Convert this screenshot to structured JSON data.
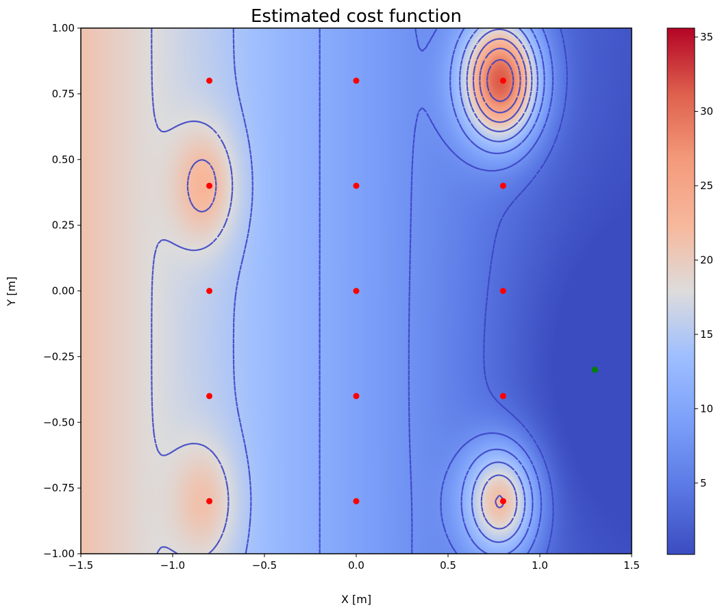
{
  "chart_data": {
    "type": "heatmap",
    "title": "Estimated cost function",
    "xlabel": "X [m]",
    "ylabel": "Y [m]",
    "xlim": [
      -1.5,
      1.5
    ],
    "ylim": [
      -1.0,
      1.0
    ],
    "x_ticks": [
      -1.5,
      -1.0,
      -0.5,
      0.0,
      0.5,
      1.0,
      1.5
    ],
    "x_tick_labels": [
      "−1.5",
      "−1.0",
      "−0.5",
      "0.0",
      "0.5",
      "1.0",
      "1.5"
    ],
    "y_ticks": [
      1.0,
      0.75,
      0.5,
      0.25,
      0.0,
      -0.25,
      -0.5,
      -0.75,
      -1.0
    ],
    "y_tick_labels": [
      "1.00",
      "0.75",
      "0.50",
      "0.25",
      "0.00",
      "−0.25",
      "−0.50",
      "−0.75",
      "−1.00"
    ],
    "colormap": "coolwarm",
    "colorbar": {
      "range": [
        0.2,
        35.6
      ],
      "ticks": [
        5,
        10,
        15,
        20,
        25,
        30,
        35
      ],
      "tick_labels": [
        "5",
        "10",
        "15",
        "20",
        "25",
        "30",
        "35"
      ]
    },
    "contours": {
      "style": "dashed",
      "color": "#3b43c4"
    },
    "grid": false,
    "red_points": [
      [
        -0.8,
        0.8
      ],
      [
        0.0,
        0.8
      ],
      [
        0.8,
        0.8
      ],
      [
        -0.8,
        0.4
      ],
      [
        0.0,
        0.4
      ],
      [
        0.8,
        0.4
      ],
      [
        -0.8,
        0.0
      ],
      [
        0.0,
        0.0
      ],
      [
        0.8,
        0.0
      ],
      [
        -0.8,
        -0.4
      ],
      [
        0.0,
        -0.4
      ],
      [
        0.8,
        -0.4
      ],
      [
        -0.8,
        -0.8
      ],
      [
        0.0,
        -0.8
      ],
      [
        0.8,
        -0.8
      ]
    ],
    "green_points": [
      [
        1.3,
        -0.3
      ]
    ],
    "colors": {
      "red_point": "#ff0000",
      "green_point": "#008000"
    }
  }
}
